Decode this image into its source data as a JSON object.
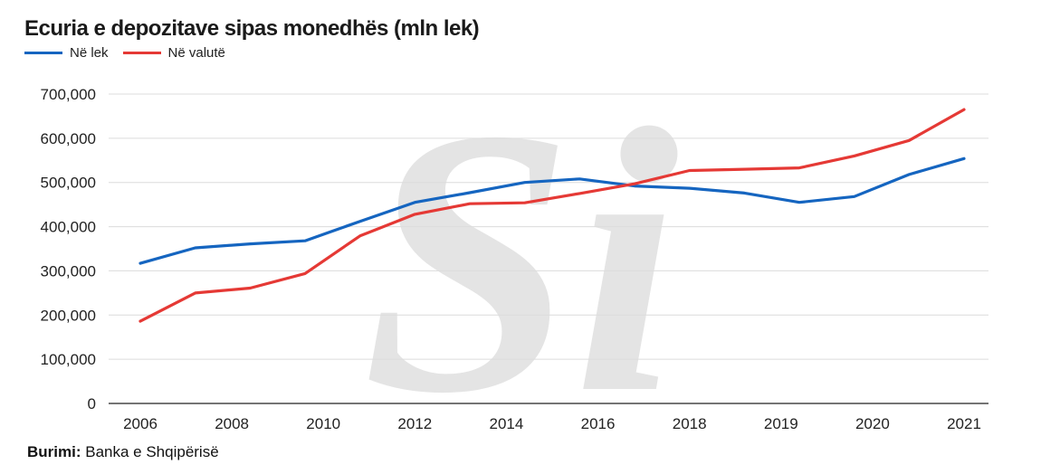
{
  "chart_data": {
    "type": "line",
    "title": "Ecuria e depozitave sipas monedhës (mln lek)",
    "categories": [
      "2006",
      "2007",
      "2008",
      "2009",
      "2010",
      "2011",
      "2012",
      "2013",
      "2014",
      "2015",
      "2016",
      "2017",
      "2018",
      "2019",
      "2020",
      "2021"
    ],
    "x_tick_labels": [
      "2006",
      "2008",
      "2010",
      "2012",
      "2014",
      "2016",
      "2018",
      "2019",
      "2020",
      "2021"
    ],
    "y_tick_labels": [
      "0",
      "100,000",
      "200,000",
      "300,000",
      "400,000",
      "500,000",
      "600,000",
      "700,000"
    ],
    "ylim": [
      0,
      700000
    ],
    "series": [
      {
        "name": "Në lek",
        "color": "#1565c0",
        "values": [
          317000,
          352000,
          361000,
          368000,
          412000,
          455000,
          477000,
          500000,
          508000,
          492000,
          487000,
          476000,
          455000,
          468000,
          518000,
          554000
        ]
      },
      {
        "name": "Në valutë",
        "color": "#e53935",
        "values": [
          186000,
          250000,
          261000,
          294000,
          379000,
          428000,
          452000,
          454000,
          475000,
          497000,
          527000,
          530000,
          533000,
          560000,
          595000,
          665000
        ]
      }
    ],
    "xlabel": "",
    "ylabel": "",
    "legend": "top-left"
  },
  "source": {
    "label": "Burimi:",
    "text": "Banka e Shqipërisë"
  },
  "watermark": {
    "text": "Si",
    "color": "#e4e4e4"
  }
}
